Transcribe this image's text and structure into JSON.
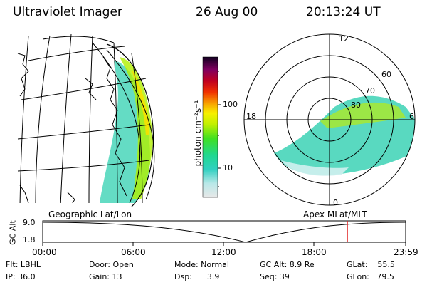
{
  "header": {
    "instrument": "Ultraviolet Imager",
    "date": "26 Aug 00",
    "time": "20:13:24 UT"
  },
  "panels": {
    "left_caption": "Geographic Lat/Lon",
    "right_caption": "Apex MLat/MLT"
  },
  "colorbar": {
    "label": "photon cm⁻²s⁻¹",
    "ticks": [
      "100",
      "10"
    ]
  },
  "polar": {
    "mlt_labels": [
      "12",
      "18",
      "6",
      "0"
    ],
    "lat_labels": [
      "60",
      "70",
      "80"
    ]
  },
  "altitude_plot": {
    "ylabel": "GC Alt",
    "y_ticks": [
      "9.0",
      "1.8"
    ],
    "x_ticks": [
      "00:00",
      "06:00",
      "12:00",
      "18:00",
      "23:59"
    ],
    "marker_color": "#e02020"
  },
  "info": {
    "flt": "Flt: LBHL",
    "ip": "IP: 36.0",
    "door": "Door: Open",
    "gain": "Gain: 13",
    "mode": "Mode: Normal",
    "dsp": "Dsp:      3.9",
    "gcalt": "GC Alt: 8.9 Re",
    "seq": "Seq: 39",
    "glat": "GLat:    55.5",
    "glon": "GLon:   79.5"
  }
}
